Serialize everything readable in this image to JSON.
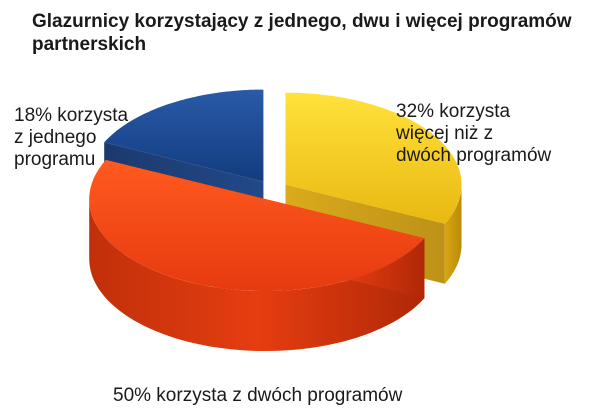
{
  "chart_data": {
    "type": "pie",
    "title": "Glazurnicy korzystający z jednego, dwu i więcej programów partnerskich",
    "slices": [
      {
        "value": 32,
        "label": "32% korzysta\nwięcej niż z\ndwóch  programów",
        "color": "#f2c21a"
      },
      {
        "value": 50,
        "label": "50% korzysta z dwóch programów",
        "color": "#f04515"
      },
      {
        "value": 18,
        "label": "18% korzysta\nz jednego\nprogramu",
        "color": "#1f4e94"
      }
    ],
    "style": "3d-exploded"
  }
}
